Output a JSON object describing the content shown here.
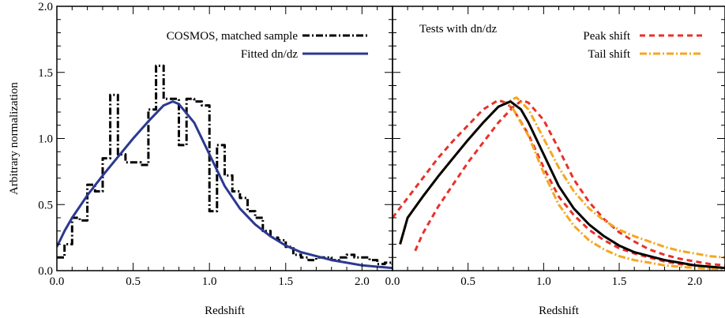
{
  "chart_data": [
    {
      "type": "line",
      "title": "",
      "xlabel": "Redshift",
      "ylabel": "Arbitrary normalization",
      "xlim": [
        0.0,
        2.2
      ],
      "ylim": [
        0.0,
        2.0
      ],
      "xticks": [
        "0.0",
        "0.5",
        "1.0",
        "1.5",
        "2.0"
      ],
      "yticks": [
        "0.0",
        "0.5",
        "1.0",
        "1.5",
        "2.0"
      ],
      "grid": false,
      "legend_placement": "top-right",
      "series": [
        {
          "name": "COSMOS, matched sample",
          "style": "dash-dot-step",
          "color": "#000000",
          "x": [
            0.0,
            0.05,
            0.1,
            0.15,
            0.2,
            0.25,
            0.3,
            0.35,
            0.4,
            0.45,
            0.5,
            0.55,
            0.6,
            0.65,
            0.7,
            0.75,
            0.8,
            0.85,
            0.9,
            0.95,
            1.0,
            1.05,
            1.1,
            1.15,
            1.2,
            1.25,
            1.3,
            1.35,
            1.4,
            1.45,
            1.5,
            1.55,
            1.6,
            1.65,
            1.7,
            1.75,
            1.8,
            1.85,
            1.9,
            1.95,
            2.0,
            2.05,
            2.1,
            2.15,
            2.2
          ],
          "y": [
            0.1,
            0.2,
            0.4,
            0.38,
            0.65,
            0.6,
            0.85,
            1.33,
            0.88,
            0.82,
            0.82,
            0.8,
            1.22,
            1.55,
            1.3,
            1.3,
            0.95,
            1.3,
            1.28,
            1.25,
            0.45,
            0.95,
            0.72,
            0.6,
            0.55,
            0.45,
            0.4,
            0.3,
            0.25,
            0.23,
            0.18,
            0.12,
            0.1,
            0.08,
            0.1,
            0.1,
            0.08,
            0.1,
            0.12,
            0.1,
            0.1,
            0.08,
            0.05,
            0.06,
            0.05
          ]
        },
        {
          "name": "Fitted dn/dz",
          "style": "solid",
          "color": "#2b3990",
          "x": [
            0.0,
            0.05,
            0.1,
            0.2,
            0.3,
            0.4,
            0.5,
            0.6,
            0.7,
            0.76,
            0.8,
            0.9,
            1.0,
            1.1,
            1.2,
            1.3,
            1.4,
            1.5,
            1.6,
            1.7,
            1.8,
            1.9,
            2.0,
            2.1,
            2.2
          ],
          "y": [
            0.18,
            0.3,
            0.4,
            0.57,
            0.72,
            0.86,
            1.0,
            1.13,
            1.25,
            1.28,
            1.26,
            1.12,
            0.88,
            0.64,
            0.47,
            0.35,
            0.26,
            0.19,
            0.14,
            0.11,
            0.08,
            0.06,
            0.04,
            0.03,
            0.02
          ]
        }
      ]
    },
    {
      "type": "line",
      "title": "Tests with dn/dz",
      "xlabel": "Redshift",
      "ylabel": "",
      "xlim": [
        0.0,
        2.2
      ],
      "ylim": [
        0.0,
        2.0
      ],
      "xticks": [
        "0.0",
        "0.5",
        "1.0",
        "1.5",
        "2.0"
      ],
      "grid": false,
      "legend_placement": "top-right",
      "series": [
        {
          "name": "Peak shift",
          "style": "dashed",
          "color": "#e8312b",
          "x": [
            0.0,
            0.1,
            0.2,
            0.3,
            0.4,
            0.5,
            0.6,
            0.7,
            0.75,
            0.8,
            0.9,
            1.0,
            1.1,
            1.2,
            1.3,
            1.4,
            1.5,
            1.6,
            1.7,
            1.8,
            1.9,
            2.0,
            2.1,
            2.2
          ],
          "y": [
            0.4,
            0.55,
            0.7,
            0.85,
            0.98,
            1.1,
            1.22,
            1.29,
            1.27,
            1.22,
            1.03,
            0.78,
            0.56,
            0.42,
            0.31,
            0.23,
            0.17,
            0.13,
            0.1,
            0.07,
            0.05,
            0.04,
            0.03,
            0.02
          ]
        },
        {
          "name": "",
          "style": "dashed",
          "color": "#e8312b",
          "x": [
            0.15,
            0.2,
            0.3,
            0.4,
            0.5,
            0.6,
            0.7,
            0.8,
            0.86,
            0.9,
            1.0,
            1.1,
            1.2,
            1.3,
            1.4,
            1.5,
            1.6,
            1.7,
            1.8,
            1.9,
            2.0,
            2.1,
            2.2
          ],
          "y": [
            0.15,
            0.28,
            0.48,
            0.65,
            0.82,
            0.97,
            1.12,
            1.24,
            1.29,
            1.27,
            1.14,
            0.92,
            0.69,
            0.52,
            0.39,
            0.29,
            0.22,
            0.16,
            0.12,
            0.09,
            0.07,
            0.05,
            0.04
          ]
        },
        {
          "name": "Tail shift",
          "style": "dash-dot",
          "color": "#f5a623",
          "x": [
            0.05,
            0.1,
            0.2,
            0.3,
            0.4,
            0.5,
            0.6,
            0.7,
            0.8,
            0.82,
            0.9,
            1.0,
            1.1,
            1.2,
            1.3,
            1.4,
            1.5,
            1.6,
            1.7,
            1.8,
            1.9,
            2.0,
            2.1,
            2.2
          ],
          "y": [
            0.2,
            0.4,
            0.56,
            0.71,
            0.85,
            0.99,
            1.12,
            1.24,
            1.3,
            1.31,
            1.22,
            1.0,
            0.78,
            0.6,
            0.47,
            0.38,
            0.31,
            0.26,
            0.22,
            0.18,
            0.15,
            0.13,
            0.11,
            0.1
          ]
        },
        {
          "name": "",
          "style": "dash-dot",
          "color": "#f5a623",
          "x": [
            0.05,
            0.1,
            0.2,
            0.3,
            0.4,
            0.5,
            0.6,
            0.7,
            0.76,
            0.8,
            0.9,
            1.0,
            1.1,
            1.2,
            1.3,
            1.4,
            1.5,
            1.6,
            1.7,
            1.8,
            1.9,
            2.0,
            2.1,
            2.2
          ],
          "y": [
            0.2,
            0.4,
            0.56,
            0.71,
            0.85,
            0.99,
            1.12,
            1.24,
            1.27,
            1.22,
            1.02,
            0.74,
            0.5,
            0.34,
            0.23,
            0.16,
            0.11,
            0.08,
            0.06,
            0.04,
            0.03,
            0.02,
            0.015,
            0.01
          ]
        },
        {
          "name": "",
          "style": "solid",
          "color": "#000000",
          "x": [
            0.05,
            0.1,
            0.2,
            0.3,
            0.4,
            0.5,
            0.6,
            0.7,
            0.78,
            0.85,
            0.9,
            1.0,
            1.1,
            1.2,
            1.3,
            1.4,
            1.5,
            1.6,
            1.7,
            1.8,
            1.9,
            2.0,
            2.1,
            2.2
          ],
          "y": [
            0.2,
            0.4,
            0.56,
            0.71,
            0.85,
            0.99,
            1.12,
            1.24,
            1.28,
            1.22,
            1.12,
            0.88,
            0.64,
            0.47,
            0.35,
            0.26,
            0.19,
            0.14,
            0.11,
            0.08,
            0.06,
            0.04,
            0.03,
            0.02
          ]
        }
      ]
    }
  ]
}
